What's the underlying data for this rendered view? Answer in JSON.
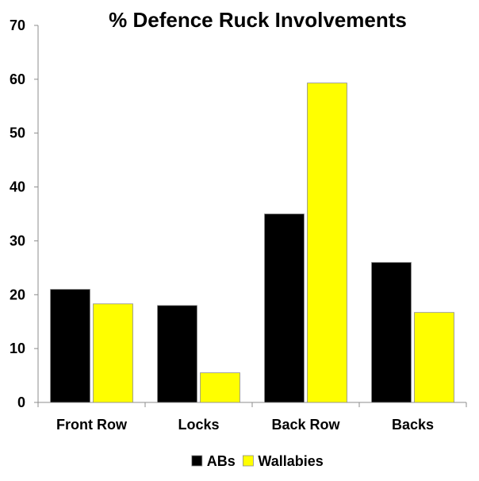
{
  "chart_data": {
    "type": "bar",
    "title": "% Defence Ruck Involvements",
    "xlabel": "",
    "ylabel": "",
    "categories": [
      "Front Row",
      "Locks",
      "Back Row",
      "Backs"
    ],
    "series": [
      {
        "name": "ABs",
        "values": [
          21,
          18,
          35,
          26
        ],
        "color": "#000000"
      },
      {
        "name": "Wallabies",
        "values": [
          18.3,
          5.5,
          59.3,
          16.7
        ],
        "color": "#ffff00"
      }
    ],
    "ylim": [
      0,
      70
    ],
    "yticks": [
      "0",
      "10",
      "20",
      "30",
      "40",
      "50",
      "60",
      "70"
    ],
    "grid": false,
    "legend_position": "bottom"
  }
}
